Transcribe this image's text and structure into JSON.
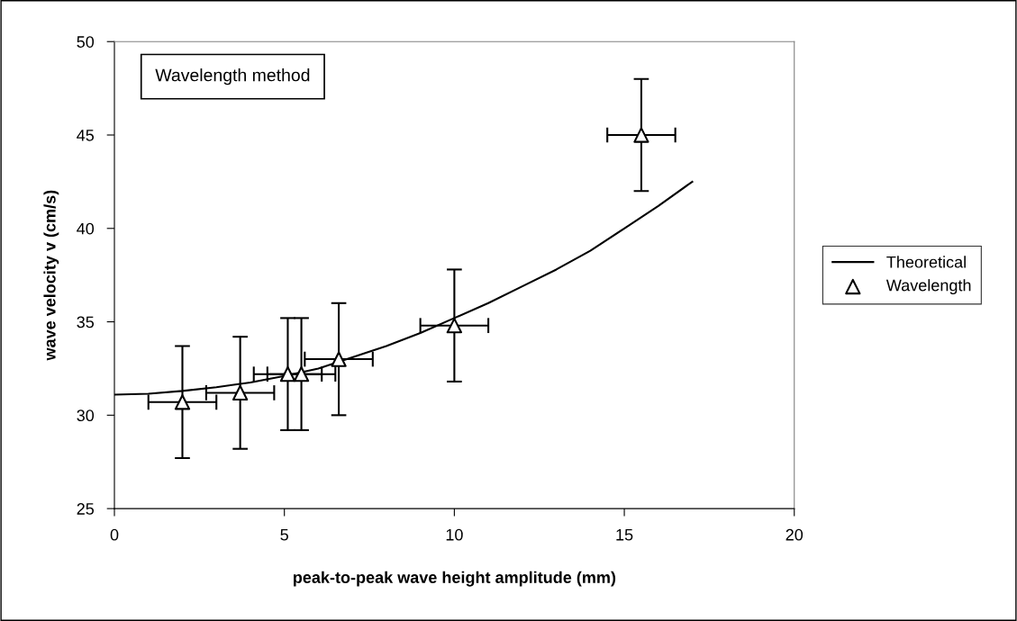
{
  "chart_data": {
    "type": "scatter",
    "xlabel": "peak-to-peak wave height amplitude (mm)",
    "ylabel": "wave velocity v (cm/s)",
    "annotations": [
      "Wavelength method"
    ],
    "xlim": [
      0,
      20
    ],
    "xticks": [
      0,
      5,
      10,
      15,
      20
    ],
    "ylim": [
      25,
      50
    ],
    "yticks": [
      25,
      30,
      35,
      40,
      45,
      50
    ],
    "grid": false,
    "legend": "right",
    "series": [
      {
        "name": "Theoretical",
        "type": "line",
        "color": "#000000",
        "marker": "none",
        "line_style": "solid",
        "x": [
          0,
          1,
          2,
          3,
          4,
          5,
          6,
          7,
          8,
          9,
          10,
          11,
          12,
          13,
          14,
          15,
          16,
          17
        ],
        "values": [
          31.1,
          31.15,
          31.3,
          31.5,
          31.75,
          32.1,
          32.5,
          33.1,
          33.7,
          34.4,
          35.2,
          36.0,
          36.9,
          37.8,
          38.8,
          40.0,
          41.2,
          42.5
        ]
      },
      {
        "name": "Wavelength",
        "color": "#000000",
        "marker": "triangle",
        "x": [
          2.0,
          3.7,
          5.1,
          5.5,
          6.6,
          10,
          15.5
        ],
        "values": [
          30.7,
          31.2,
          32.2,
          32.2,
          33.0,
          34.8,
          45.0
        ],
        "errors": [
          3,
          3,
          3,
          3,
          3,
          3,
          3
        ],
        "xerrors": [
          1,
          1,
          1,
          1,
          1,
          1,
          1
        ]
      }
    ]
  }
}
